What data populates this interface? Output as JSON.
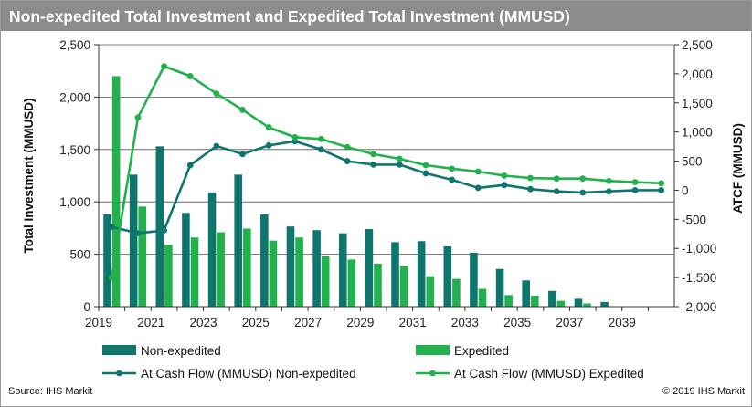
{
  "title": "Non-expedited Total Investment and Expedited Total Investment (MMUSD)",
  "source": "Source: IHS Markit",
  "copyright": "© 2019 IHS Markit",
  "colors": {
    "title_bg": "#8c8c8c",
    "non_expedited": "#0f766e",
    "expedited": "#22b14c",
    "grid": "#555555"
  },
  "chart_data": {
    "type": "bar+line",
    "years": [
      2019,
      2020,
      2021,
      2022,
      2023,
      2024,
      2025,
      2026,
      2027,
      2028,
      2029,
      2030,
      2031,
      2032,
      2033,
      2034,
      2035,
      2036,
      2037,
      2038,
      2039,
      2040
    ],
    "x_tick_labels": [
      "2019",
      "2021",
      "2023",
      "2025",
      "2027",
      "2029",
      "2031",
      "2033",
      "2035",
      "2037",
      "2039"
    ],
    "y_left": {
      "label": "Total Investment (MMUSD)",
      "min": 0,
      "max": 2500,
      "step": 500,
      "tick_labels": [
        "0",
        "500",
        "1,000",
        "1,500",
        "2,000",
        "2,500"
      ]
    },
    "y_right": {
      "label": "ATCF (MMUSD)",
      "min": -2000,
      "max": 2500,
      "step": 500,
      "tick_labels": [
        "-2,000",
        "-1,500",
        "-1,000",
        "-500",
        "0",
        "500",
        "1,000",
        "1,500",
        "2,000",
        "2,500"
      ]
    },
    "grid": "horizontal",
    "legend_position": "bottom",
    "series": [
      {
        "name": "Non-expedited",
        "kind": "bar",
        "axis": "left",
        "color": "#0f766e",
        "values": [
          880,
          1260,
          1530,
          895,
          1090,
          1260,
          880,
          765,
          730,
          700,
          740,
          615,
          625,
          575,
          515,
          360,
          250,
          150,
          75,
          45,
          0,
          0
        ]
      },
      {
        "name": "Expedited",
        "kind": "bar",
        "axis": "left",
        "color": "#22b14c",
        "values": [
          2200,
          955,
          590,
          660,
          710,
          745,
          630,
          660,
          480,
          450,
          410,
          390,
          290,
          265,
          170,
          110,
          105,
          55,
          30,
          0,
          0,
          0
        ]
      },
      {
        "name": "At Cash Flow (MMUSD) Non-expedited",
        "kind": "line",
        "axis": "right",
        "color": "#0f766e",
        "values": [
          -630,
          -740,
          -690,
          430,
          760,
          620,
          770,
          840,
          700,
          500,
          440,
          440,
          290,
          180,
          40,
          90,
          20,
          -20,
          -40,
          -20,
          0,
          0
        ]
      },
      {
        "name": "At Cash Flow (MMUSD) Expedited",
        "kind": "line",
        "axis": "right",
        "color": "#22b14c",
        "values": [
          -1500,
          1250,
          2130,
          1960,
          1660,
          1380,
          1080,
          910,
          880,
          740,
          620,
          540,
          430,
          370,
          320,
          250,
          210,
          200,
          200,
          160,
          140,
          120
        ]
      }
    ]
  }
}
